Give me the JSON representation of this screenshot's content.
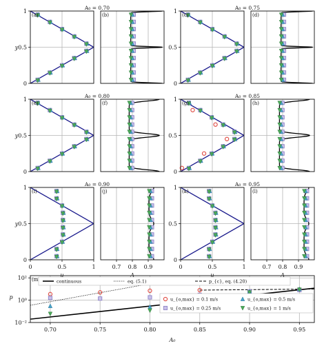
{
  "chart_data": {
    "type": "scatter",
    "panels": [
      {
        "letter": "(a)",
        "title": "A₀ = 0.70",
        "A": 0.7,
        "kind": "u"
      },
      {
        "letter": "(b)",
        "title": "",
        "A": 0.7,
        "kind": "A"
      },
      {
        "letter": "(c)",
        "title": "A₀ = 0.75",
        "A": 0.75,
        "kind": "u"
      },
      {
        "letter": "(d)",
        "title": "",
        "A": 0.75,
        "kind": "A"
      },
      {
        "letter": "(e)",
        "title": "A₀ = 0.80",
        "A": 0.8,
        "kind": "u"
      },
      {
        "letter": "(f)",
        "title": "",
        "A": 0.8,
        "kind": "A"
      },
      {
        "letter": "(g)",
        "title": "A₀ = 0.85",
        "A": 0.85,
        "kind": "u"
      },
      {
        "letter": "(h)",
        "title": "",
        "A": 0.85,
        "kind": "A"
      },
      {
        "letter": "(i)",
        "title": "A₀ = 0.90",
        "A": 0.9,
        "kind": "u"
      },
      {
        "letter": "(j)",
        "title": "",
        "A": 0.9,
        "kind": "A"
      },
      {
        "letter": "(k)",
        "title": "A₀ = 0.95",
        "A": 0.95,
        "kind": "u"
      },
      {
        "letter": "(l)",
        "title": "",
        "A": 0.95,
        "kind": "A"
      }
    ],
    "profile_y": [
      0.05,
      0.15,
      0.25,
      0.35,
      0.45,
      0.55,
      0.65,
      0.75,
      0.85,
      0.95
    ],
    "u_xlim": [
      0,
      1
    ],
    "u_xticks": [
      "0",
      "0.5",
      "1"
    ],
    "A_xlim": [
      0.6,
      1.0
    ],
    "A_xticks": [
      "0.7",
      "0.8",
      "0.9"
    ],
    "ylim": [
      0,
      1
    ],
    "yticks": [
      "0",
      "0.5",
      "1"
    ],
    "u_xlabel": "u",
    "A_xlabel": "A",
    "ylabel": "y",
    "bottom": {
      "letter": "(m)",
      "xlabel": "A₀",
      "ylabel": "p",
      "xlim": [
        0.68,
        0.965
      ],
      "xticks": [
        0.7,
        0.75,
        0.8,
        0.85,
        0.9,
        0.95
      ],
      "xtick_labels": [
        "0.70",
        "0.75",
        "0.80",
        "0.85",
        "0.90",
        "0.95"
      ],
      "ytick_labels": [
        "10⁻²",
        "10⁰",
        "10²"
      ],
      "continuous": [
        [
          0.68,
          0.02
        ],
        [
          0.965,
          12
        ]
      ],
      "eq51": [
        [
          0.68,
          0.35
        ],
        [
          0.8,
          30
        ],
        [
          0.85,
          60
        ]
      ],
      "eq420": [
        [
          0.85,
          8
        ],
        [
          0.965,
          10
        ]
      ],
      "markers": [
        {
          "series": "0.1",
          "A0": 0.7,
          "p": 3.5
        },
        {
          "series": "0.1",
          "A0": 0.75,
          "p": 5
        },
        {
          "series": "0.1",
          "A0": 0.8,
          "p": 7
        },
        {
          "series": "0.1",
          "A0": 0.85,
          "p": 8
        },
        {
          "series": "0.1",
          "A0": 0.95,
          "p": 9
        },
        {
          "series": "0.25",
          "A0": 0.7,
          "p": 1.6
        },
        {
          "series": "0.25",
          "A0": 0.75,
          "p": 1.4
        },
        {
          "series": "0.25",
          "A0": 0.8,
          "p": 1.8
        },
        {
          "series": "0.25",
          "A0": 0.85,
          "p": 3
        },
        {
          "series": "0.25",
          "A0": 0.9,
          "p": 6
        },
        {
          "series": "0.25",
          "A0": 0.95,
          "p": 8
        },
        {
          "series": "0.5",
          "A0": 0.7,
          "p": 0.3
        },
        {
          "series": "0.5",
          "A0": 0.8,
          "p": 0.25
        },
        {
          "series": "0.5",
          "A0": 0.85,
          "p": 1.5
        },
        {
          "series": "0.5",
          "A0": 0.9,
          "p": 6
        },
        {
          "series": "0.5",
          "A0": 0.95,
          "p": 10
        },
        {
          "series": "1",
          "A0": 0.7,
          "p": 0.06
        },
        {
          "series": "1",
          "A0": 0.8,
          "p": 0.12
        },
        {
          "series": "1",
          "A0": 0.85,
          "p": 1.0
        },
        {
          "series": "1",
          "A0": 0.9,
          "p": 5
        },
        {
          "series": "1",
          "A0": 0.95,
          "p": 9
        }
      ]
    },
    "legend": {
      "continuous": "continuous",
      "eq51": "eq. (5.1)",
      "eq420": "p_{c}, eq. (4.20)",
      "s01": "u_{o,max} = 0.1 m/s",
      "s025": "u_{o,max} = 0.25 m/s",
      "s05": "u_{o,max} = 0.5 m/s",
      "s1": "u_{o,max} = 1 m/s"
    },
    "colors": {
      "continuous_u": "#1a1a8c",
      "continuous_A": "#000000",
      "s01": "#e0473f",
      "s025": "#8f84c7",
      "s05": "#4aa3c8",
      "s1": "#4caa5a",
      "grid": "#b5b5b5"
    }
  }
}
